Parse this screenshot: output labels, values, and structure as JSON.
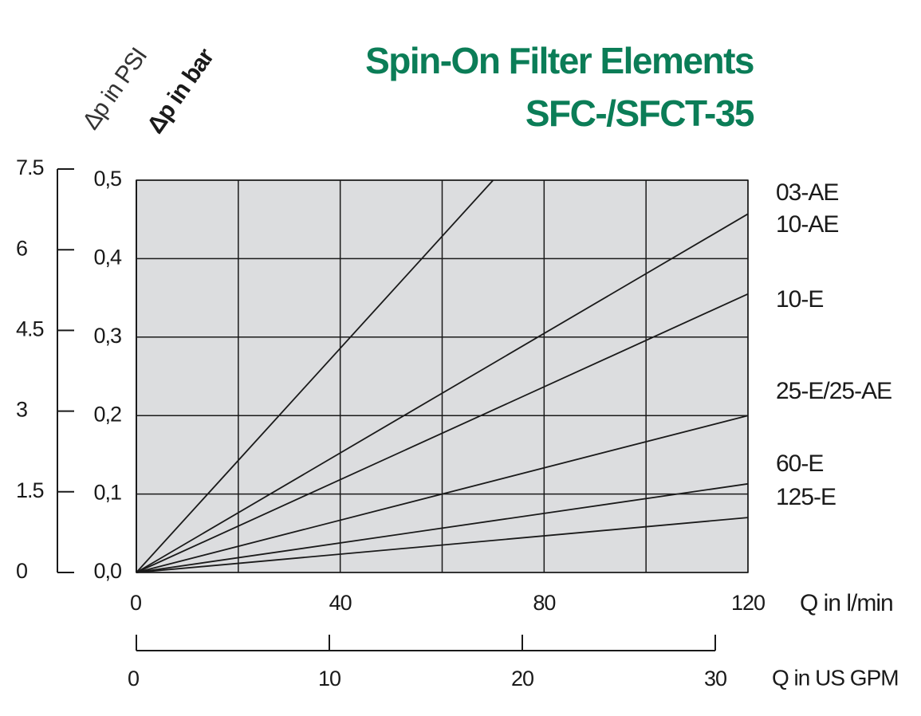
{
  "chart_data": {
    "type": "line",
    "title": "Spin-On Filter Elements",
    "subtitle": "SFC-/SFCT-35",
    "x_label": "Q in l/min",
    "x2_label": "Q in US GPM",
    "y_label": "Δp in bar",
    "y2_label": "Δp in PSI",
    "xlim": [
      0,
      120
    ],
    "xticks": [
      0,
      40,
      80,
      120
    ],
    "x_grid": [
      0,
      20,
      40,
      60,
      80,
      100,
      120
    ],
    "x2lim": [
      0,
      30
    ],
    "x2ticks": [
      0,
      10,
      20,
      30
    ],
    "ylim": [
      0,
      0.5
    ],
    "yticks": [
      {
        "value": 0,
        "label": "0,0"
      },
      {
        "value": 0.1,
        "label": "0,1"
      },
      {
        "value": 0.2,
        "label": "0,2"
      },
      {
        "value": 0.3,
        "label": "0,3"
      },
      {
        "value": 0.4,
        "label": "0,4"
      },
      {
        "value": 0.5,
        "label": "0,5"
      }
    ],
    "y2lim": [
      0,
      7.5
    ],
    "y2ticks": [
      0,
      1.5,
      3,
      4.5,
      6,
      7.5
    ],
    "grid": true,
    "plot_background": "#dcdddf",
    "series": [
      {
        "name": "03-AE",
        "color": "#1a1a1a",
        "x": [
          0,
          70
        ],
        "values": [
          0,
          0.5
        ]
      },
      {
        "name": "10-AE",
        "color": "#1a1a1a",
        "x": [
          0,
          120
        ],
        "values": [
          0,
          0.457
        ]
      },
      {
        "name": "10-E",
        "color": "#1a1a1a",
        "x": [
          0,
          120
        ],
        "values": [
          0,
          0.355
        ]
      },
      {
        "name": "25-E/25-AE",
        "color": "#1a1a1a",
        "x": [
          0,
          120
        ],
        "values": [
          0,
          0.2
        ]
      },
      {
        "name": "60-E",
        "color": "#1a1a1a",
        "x": [
          0,
          120
        ],
        "values": [
          0,
          0.113
        ]
      },
      {
        "name": "125-E",
        "color": "#1a1a1a",
        "x": [
          0,
          120
        ],
        "values": [
          0,
          0.07
        ]
      }
    ]
  }
}
